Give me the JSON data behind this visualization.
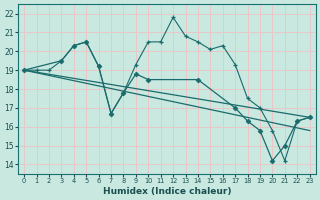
{
  "xlabel": "Humidex (Indice chaleur)",
  "xlim": [
    -0.5,
    23.5
  ],
  "ylim": [
    13.5,
    22.5
  ],
  "yticks": [
    14,
    15,
    16,
    17,
    18,
    19,
    20,
    21,
    22
  ],
  "xticks": [
    0,
    1,
    2,
    3,
    4,
    5,
    6,
    7,
    8,
    9,
    10,
    11,
    12,
    13,
    14,
    15,
    16,
    17,
    18,
    19,
    20,
    21,
    22,
    23
  ],
  "bg_color": "#c8e8e0",
  "grid_color": "#e8c8c8",
  "line_color": "#1a6b6b",
  "jagged_x": [
    0,
    1,
    2,
    3,
    4,
    5,
    6,
    7,
    8,
    9,
    10,
    11,
    12,
    13,
    14,
    15,
    16,
    17,
    18,
    19,
    20,
    21,
    22,
    23
  ],
  "jagged_y": [
    19,
    19,
    19,
    19.5,
    20.3,
    20.5,
    19.2,
    16.7,
    17.8,
    19.3,
    20.5,
    20.5,
    21.8,
    20.8,
    20.5,
    20.1,
    20.3,
    19.3,
    17.5,
    17.0,
    15.8,
    14.2,
    16.3,
    16.5
  ],
  "diamond_x": [
    0,
    3,
    4,
    5,
    6,
    7,
    8,
    9,
    10,
    14,
    17,
    18,
    19,
    20,
    21,
    22,
    23
  ],
  "diamond_y": [
    19,
    19.5,
    20.3,
    20.5,
    19.2,
    16.7,
    17.8,
    18.8,
    18.5,
    18.5,
    17.0,
    16.3,
    15.8,
    14.2,
    15.0,
    16.3,
    16.5
  ],
  "line1_x": [
    0,
    23
  ],
  "line1_y": [
    19,
    16.5
  ],
  "line2_x": [
    0,
    23
  ],
  "line2_y": [
    19,
    15.8
  ]
}
